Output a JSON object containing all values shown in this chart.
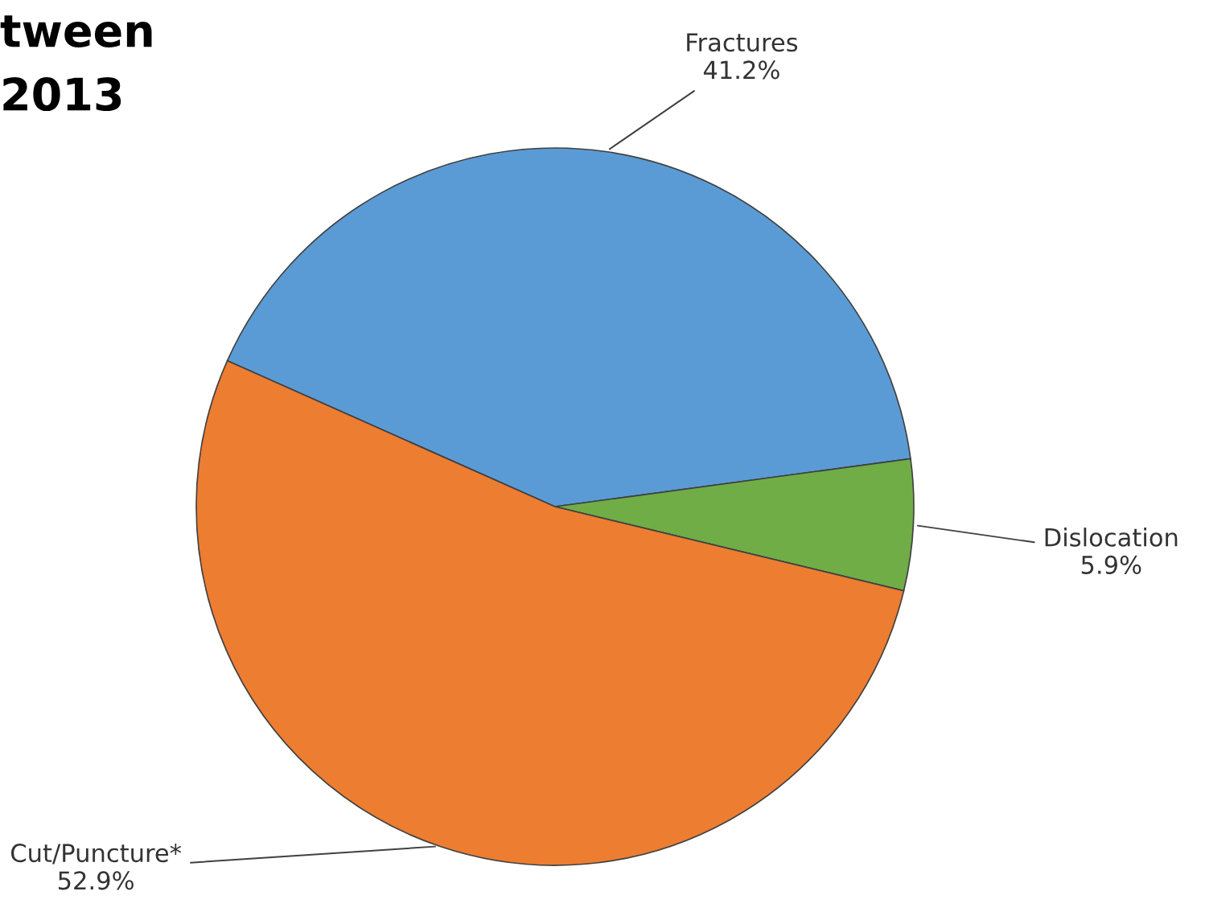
{
  "chart_data": {
    "type": "pie",
    "title": "tween\n2013",
    "categories": [
      "Fractures",
      "Dislocation",
      "Cut/Puncture*"
    ],
    "values": [
      41.2,
      5.9,
      52.9
    ],
    "value_labels": [
      "41.2%",
      "5.9%",
      "52.9%"
    ],
    "colors": [
      "#5b9bd5",
      "#70ad47",
      "#ed7d31"
    ]
  }
}
